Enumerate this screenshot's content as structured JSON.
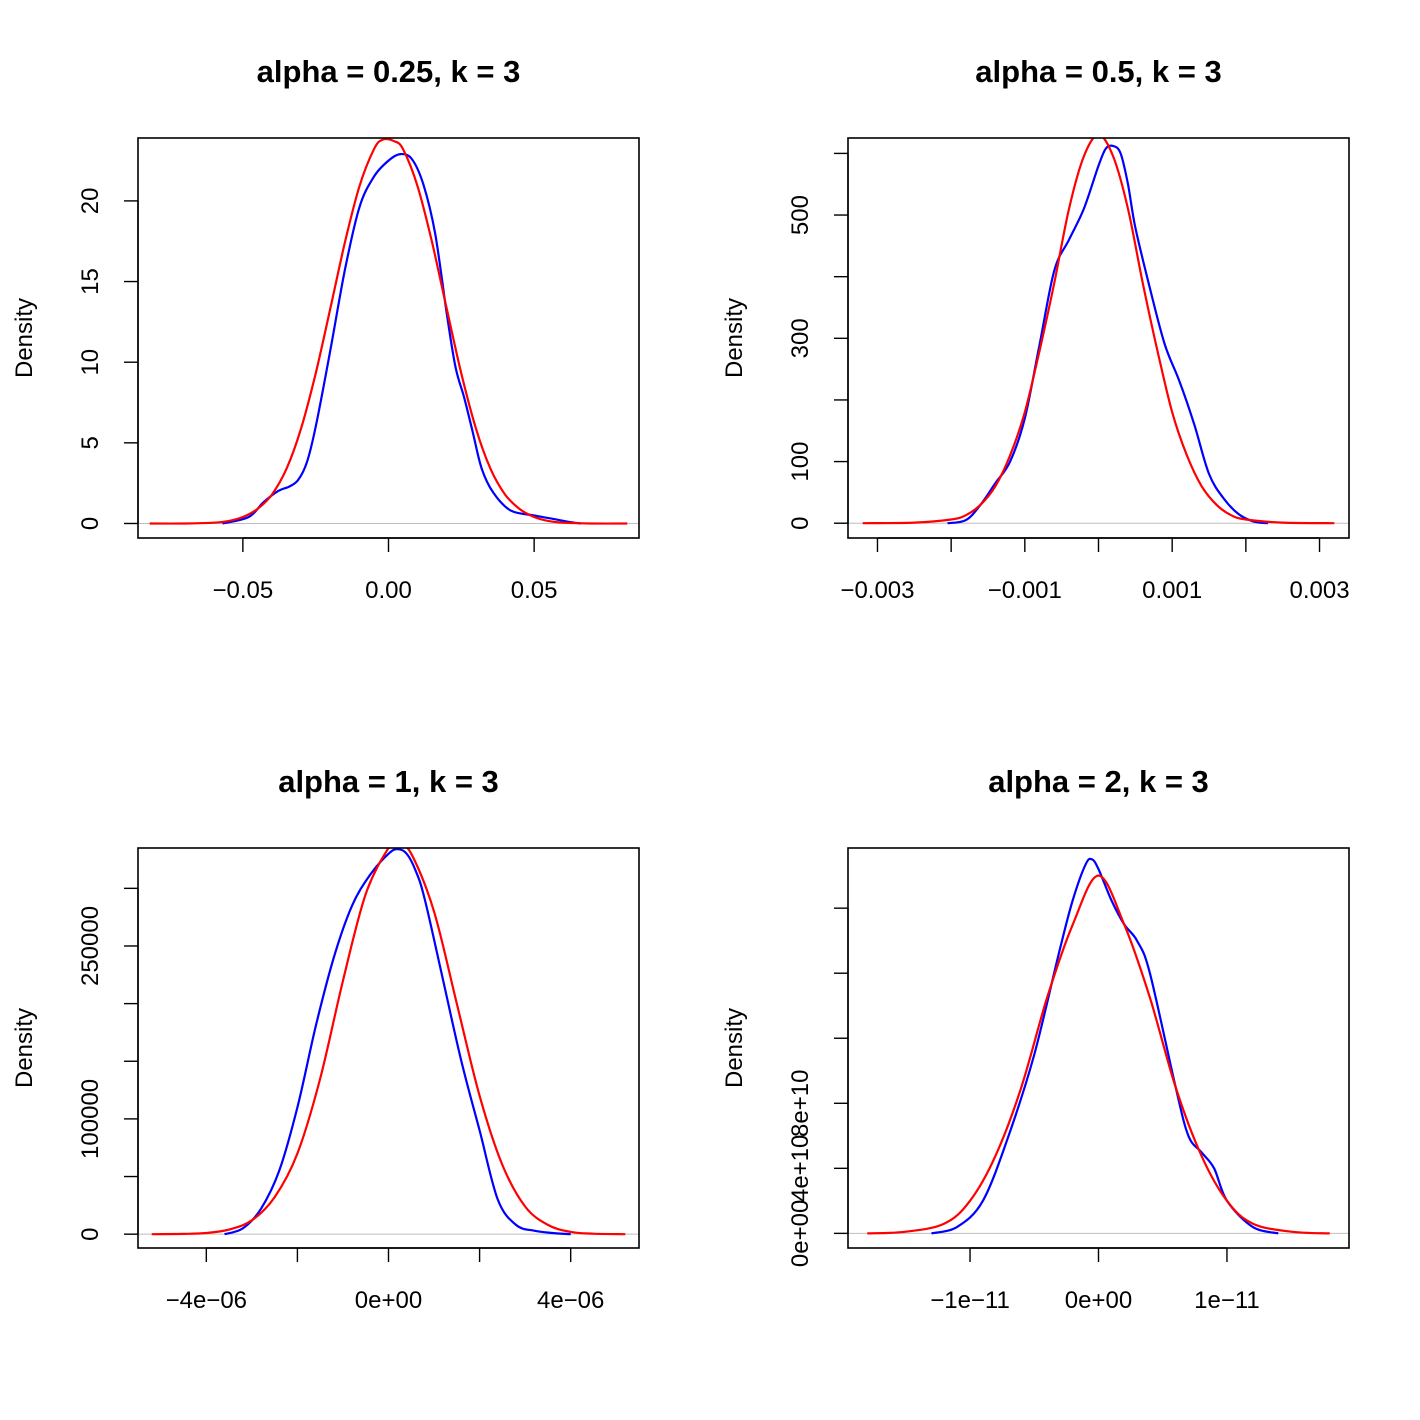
{
  "chart_data": [
    {
      "type": "line",
      "title": "alpha = 0.25, k = 3",
      "xlabel": "",
      "ylabel": "Density",
      "xlim": [
        -0.086,
        0.086
      ],
      "ylim": [
        -0.9,
        23.9
      ],
      "xticks": [
        -0.05,
        0,
        0.05
      ],
      "xtick_labels": [
        "−0.05",
        "0.00",
        "0.05"
      ],
      "yticks": [
        0,
        5,
        10,
        15,
        20
      ],
      "ytick_labels": [
        "0",
        "5",
        "10",
        "15",
        "20"
      ],
      "zero_line": true,
      "series": [
        {
          "color": "#0000ff",
          "x": [
            -0.057,
            -0.048,
            -0.043,
            -0.038,
            -0.034,
            -0.031,
            -0.028,
            -0.025,
            -0.02,
            -0.015,
            -0.01,
            -0.005,
            0,
            0.004,
            0.008,
            0.012,
            0.016,
            0.02,
            0.023,
            0.026,
            0.029,
            0.032,
            0.036,
            0.042,
            0.05,
            0.056,
            0.062,
            0.066
          ],
          "y": [
            0,
            0.4,
            1.3,
            2.0,
            2.3,
            2.7,
            3.8,
            6.0,
            10.7,
            15.7,
            19.6,
            21.5,
            22.5,
            22.9,
            22.6,
            21.0,
            18.0,
            13.0,
            9.7,
            7.8,
            5.6,
            3.4,
            1.9,
            0.8,
            0.5,
            0.3,
            0.1,
            0
          ]
        },
        {
          "color": "#ff0000",
          "x": [
            -0.082,
            -0.07,
            -0.06,
            -0.055,
            -0.05,
            -0.045,
            -0.04,
            -0.035,
            -0.03,
            -0.025,
            -0.02,
            -0.015,
            -0.01,
            -0.005,
            -0.002,
            0.002,
            0.005,
            0.01,
            0.015,
            0.02,
            0.025,
            0.03,
            0.035,
            0.04,
            0.045,
            0.05,
            0.055,
            0.06,
            0.07,
            0.082
          ],
          "y": [
            0,
            0,
            0.05,
            0.15,
            0.4,
            0.9,
            1.8,
            3.4,
            5.9,
            9.3,
            13.3,
            17.4,
            20.9,
            23.2,
            23.8,
            23.7,
            23.2,
            20.9,
            17.4,
            13.3,
            9.3,
            5.9,
            3.4,
            1.8,
            0.9,
            0.4,
            0.15,
            0.05,
            0,
            0
          ]
        }
      ]
    },
    {
      "type": "line",
      "title": "alpha = 0.5, k = 3",
      "xlabel": "",
      "ylabel": "Density",
      "xlim": [
        -0.0034,
        0.0034
      ],
      "ylim": [
        -24,
        625
      ],
      "xticks": [
        -0.003,
        -0.002,
        -0.001,
        0,
        0.001,
        0.002,
        0.003
      ],
      "xtick_labels": [
        "−0.003",
        "",
        "−0.001",
        "",
        "0.001",
        "",
        "0.003"
      ],
      "yticks": [
        0,
        100,
        200,
        300,
        400,
        500,
        600
      ],
      "ytick_labels": [
        "0",
        "100",
        "",
        "300",
        "",
        "500",
        ""
      ],
      "zero_line": true,
      "series": [
        {
          "color": "#0000ff",
          "x": [
            -0.00205,
            -0.0018,
            -0.0016,
            -0.0014,
            -0.0012,
            -0.001,
            -0.0008,
            -0.0006,
            -0.0004,
            -0.0002,
            0,
            0.0001,
            0.0002,
            0.0003,
            0.0004,
            0.0005,
            0.0007,
            0.0009,
            0.0011,
            0.0013,
            0.0015,
            0.0017,
            0.0019,
            0.0021,
            0.0023
          ],
          "y": [
            0,
            5,
            30,
            65,
            100,
            170,
            290,
            410,
            460,
            510,
            580,
            608,
            612,
            600,
            550,
            480,
            380,
            290,
            230,
            160,
            80,
            40,
            15,
            3,
            0
          ]
        },
        {
          "color": "#ff0000",
          "x": [
            -0.0032,
            -0.0025,
            -0.002,
            -0.0018,
            -0.0016,
            -0.0014,
            -0.0012,
            -0.001,
            -0.0008,
            -0.0006,
            -0.0004,
            -0.0002,
            0,
            0.0002,
            0.0004,
            0.0006,
            0.0008,
            0.001,
            0.0012,
            0.0014,
            0.0016,
            0.0018,
            0.002,
            0.0025,
            0.0032
          ],
          "y": [
            0,
            1,
            6,
            13,
            30,
            60,
            110,
            180,
            280,
            390,
            510,
            595,
            630,
            595,
            510,
            390,
            280,
            180,
            110,
            60,
            30,
            13,
            6,
            1,
            0
          ]
        }
      ]
    },
    {
      "type": "line",
      "title": "alpha = 1, k = 3",
      "xlabel": "",
      "ylabel": "Density",
      "xlim": [
        -5.5e-06,
        5.5e-06
      ],
      "ylim": [
        -12000,
        335000
      ],
      "xticks": [
        -4e-06,
        -2e-06,
        0,
        2e-06,
        4e-06
      ],
      "xtick_labels": [
        "−4e−06",
        "",
        "0e+00",
        "",
        "4e−06"
      ],
      "yticks": [
        0,
        50000,
        100000,
        150000,
        200000,
        250000,
        300000
      ],
      "ytick_labels": [
        "0",
        "",
        "100000",
        "",
        "",
        "250000",
        ""
      ],
      "zero_line": true,
      "series": [
        {
          "color": "#0000ff",
          "x": [
            -3.6e-06,
            -3.2e-06,
            -2.8e-06,
            -2.4e-06,
            -2e-06,
            -1.6e-06,
            -1.2e-06,
            -8e-07,
            -4e-07,
            0,
            2e-07,
            4e-07,
            6e-07,
            8e-07,
            1.2e-06,
            1.6e-06,
            2e-06,
            2.4e-06,
            2.8e-06,
            3.2e-06,
            3.6e-06,
            4e-06
          ],
          "y": [
            0,
            5000,
            22000,
            55000,
            110000,
            180000,
            240000,
            285000,
            312000,
            330000,
            334000,
            330000,
            315000,
            290000,
            220000,
            150000,
            90000,
            30000,
            8000,
            3000,
            1000,
            0
          ]
        },
        {
          "color": "#ff0000",
          "x": [
            -5.2e-06,
            -4.5e-06,
            -4e-06,
            -3.5e-06,
            -3e-06,
            -2.5e-06,
            -2e-06,
            -1.5e-06,
            -1e-06,
            -5e-07,
            0,
            2e-07,
            5e-07,
            1e-06,
            1.5e-06,
            2e-06,
            2.5e-06,
            3e-06,
            3.5e-06,
            4e-06,
            4.5e-06,
            5.2e-06
          ],
          "y": [
            0,
            200,
            1000,
            4000,
            12000,
            32000,
            70000,
            135000,
            220000,
            295000,
            335000,
            339000,
            330000,
            280000,
            200000,
            120000,
            60000,
            24000,
            8000,
            2000,
            400,
            0
          ]
        }
      ]
    },
    {
      "type": "line",
      "title": "alpha = 2, k = 3",
      "xlabel": "",
      "ylabel": "Density",
      "xlim": [
        -1.95e-11,
        1.95e-11
      ],
      "ylim": [
        -9000000000.0,
        237000000000.0
      ],
      "xticks": [
        -1e-11,
        0,
        1e-11
      ],
      "xtick_labels": [
        "−1e−11",
        "0e+00",
        "1e−11"
      ],
      "yticks": [
        0,
        40000000000.0,
        80000000000.0,
        120000000000.0,
        160000000000.0,
        200000000000.0
      ],
      "ytick_labels": [
        "0e+00",
        "4e+10",
        "8e+10",
        "",
        "",
        ""
      ],
      "zero_line": true,
      "series": [
        {
          "color": "#0000ff",
          "x": [
            -1.3e-11,
            -1.1e-11,
            -9e-12,
            -7e-12,
            -5e-12,
            -3e-12,
            -2e-12,
            -1e-12,
            -5e-13,
            0,
            1e-12,
            2e-12,
            3e-12,
            4e-12,
            6e-12,
            7e-12,
            8e-12,
            9e-12,
            1e-11,
            1.2e-11,
            1.4e-11
          ],
          "y": [
            0,
            4000000000.0,
            20000000000.0,
            60000000000.0,
            110000000000.0,
            175000000000.0,
            205000000000.0,
            227000000000.0,
            230000000000.0,
            224000000000.0,
            205000000000.0,
            190000000000.0,
            180000000000.0,
            160000000000.0,
            90000000000.0,
            60000000000.0,
            50000000000.0,
            40000000000.0,
            20000000000.0,
            4000000000.0,
            0
          ]
        },
        {
          "color": "#ff0000",
          "x": [
            -1.8e-11,
            -1.5e-11,
            -1.2e-11,
            -1e-11,
            -8e-12,
            -6e-12,
            -4e-12,
            -2e-12,
            0,
            2e-12,
            4e-12,
            6e-12,
            8e-12,
            1e-11,
            1.2e-11,
            1.5e-11,
            1.8e-11
          ],
          "y": [
            0,
            1000000000.0,
            6000000000.0,
            20000000000.0,
            48000000000.0,
            90000000000.0,
            145000000000.0,
            190000000000.0,
            220000000000.0,
            190000000000.0,
            145000000000.0,
            90000000000.0,
            48000000000.0,
            20000000000.0,
            6000000000.0,
            1000000000.0,
            0
          ]
        }
      ]
    }
  ]
}
